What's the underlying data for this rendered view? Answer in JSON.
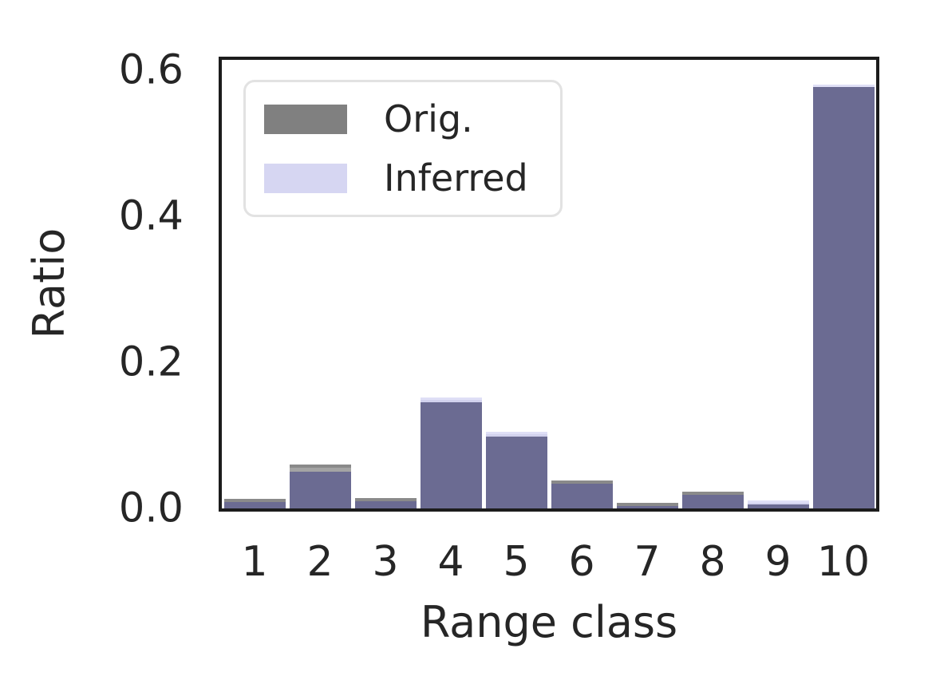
{
  "chart_data": {
    "type": "bar",
    "title": "",
    "xlabel": "Range class",
    "ylabel": "Ratio",
    "categories": [
      "1",
      "2",
      "3",
      "4",
      "5",
      "6",
      "7",
      "8",
      "9",
      "10"
    ],
    "series": [
      {
        "name": "Orig.",
        "color": "#808080",
        "bar_color": "#a4a4a4",
        "values": [
          0.011,
          0.06,
          0.012,
          0.145,
          0.098,
          0.037,
          0.004,
          0.021,
          0.006,
          0.577
        ]
      },
      {
        "name": "Inferred",
        "color": "#d6d6f2",
        "bar_color": "#d2d2ee",
        "values": [
          0.009,
          0.05,
          0.01,
          0.152,
          0.105,
          0.034,
          0.003,
          0.019,
          0.011,
          0.58
        ]
      }
    ],
    "overlap_color": "#6b6b92",
    "yticks": [
      "0.0",
      "0.2",
      "0.4",
      "0.6"
    ],
    "ytick_values": [
      0.0,
      0.2,
      0.4,
      0.6
    ],
    "ylim": [
      0,
      0.614
    ],
    "legend_position": "upper left",
    "grid": false,
    "axis_color": "#1c1c1c",
    "text_color": "#262626"
  },
  "legend": {
    "orig_label": "Orig.",
    "inferred_label": "Inferred"
  },
  "axes": {
    "x_title": "Range class",
    "y_title": "Ratio"
  }
}
